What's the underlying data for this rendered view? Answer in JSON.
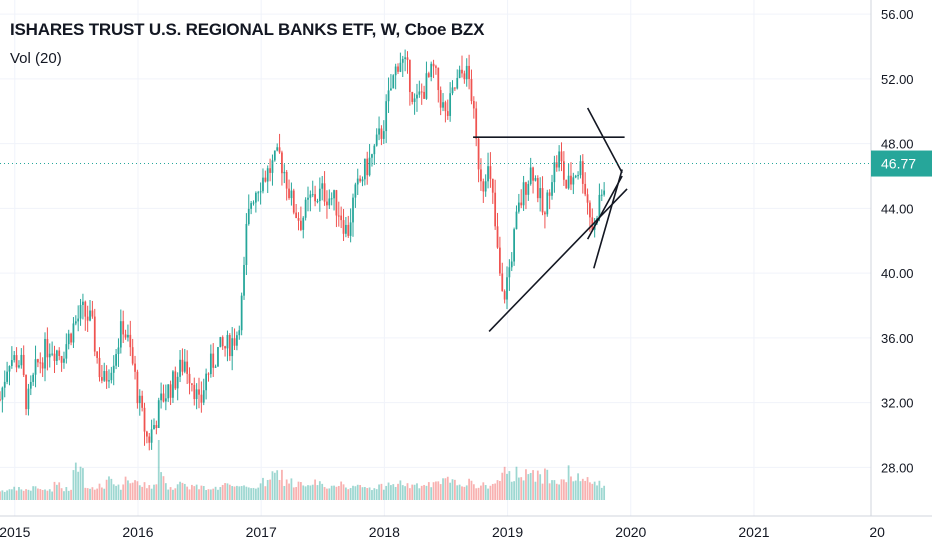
{
  "header": {
    "title": "ISHARES TRUST U.S. REGIONAL BANKS ETF, W, Cboe BZX",
    "volume_label": "Vol (20)"
  },
  "colors": {
    "up": "#26a69a",
    "down": "#ef5350",
    "price_line": "#26a69a",
    "price_badge": "#26a69a",
    "grid": "#f0f3fa",
    "axis_text": "#131722",
    "trendline": "#131722"
  },
  "chart_data": {
    "type": "candlestick",
    "interval": "W",
    "y_ticks": [
      "56.00",
      "52.00",
      "48.00",
      "44.00",
      "40.00",
      "36.00",
      "32.00",
      "28.00"
    ],
    "x_ticks": [
      "2015",
      "2016",
      "2017",
      "2018",
      "2019",
      "2020",
      "2021",
      "20"
    ],
    "ylim": [
      25.0,
      56.5
    ],
    "xlim": [
      2014.88,
      2021.95
    ],
    "last_price": 46.77,
    "last_price_label": "46.77",
    "grid": true,
    "price_path": [
      [
        2014.88,
        32.2
      ],
      [
        2014.95,
        34.8
      ],
      [
        2015.05,
        34.5
      ],
      [
        2015.1,
        31.8
      ],
      [
        2015.18,
        34.3
      ],
      [
        2015.28,
        35.6
      ],
      [
        2015.38,
        35.0
      ],
      [
        2015.48,
        36.8
      ],
      [
        2015.55,
        37.6
      ],
      [
        2015.62,
        37.0
      ],
      [
        2015.68,
        34.2
      ],
      [
        2015.72,
        33.2
      ],
      [
        2015.8,
        34.8
      ],
      [
        2015.88,
        36.8
      ],
      [
        2015.93,
        35.4
      ],
      [
        2015.97,
        33.8
      ],
      [
        2016.02,
        31.5
      ],
      [
        2016.08,
        29.6
      ],
      [
        2016.12,
        30.4
      ],
      [
        2016.2,
        32.3
      ],
      [
        2016.3,
        33.4
      ],
      [
        2016.38,
        34.6
      ],
      [
        2016.45,
        33.2
      ],
      [
        2016.5,
        31.6
      ],
      [
        2016.55,
        33.6
      ],
      [
        2016.65,
        35.2
      ],
      [
        2016.72,
        35.4
      ],
      [
        2016.8,
        36.2
      ],
      [
        2016.85,
        38.6
      ],
      [
        2016.88,
        42.5
      ],
      [
        2016.92,
        44.6
      ],
      [
        2016.98,
        45.6
      ],
      [
        2017.05,
        46.2
      ],
      [
        2017.15,
        47.2
      ],
      [
        2017.2,
        46.0
      ],
      [
        2017.25,
        44.3
      ],
      [
        2017.32,
        43.2
      ],
      [
        2017.4,
        44.5
      ],
      [
        2017.5,
        45.0
      ],
      [
        2017.58,
        44.6
      ],
      [
        2017.65,
        43.6
      ],
      [
        2017.7,
        42.4
      ],
      [
        2017.75,
        44.5
      ],
      [
        2017.82,
        46.0
      ],
      [
        2017.9,
        47.2
      ],
      [
        2017.98,
        48.8
      ],
      [
        2018.05,
        51.3
      ],
      [
        2018.12,
        53.4
      ],
      [
        2018.2,
        52.2
      ],
      [
        2018.25,
        50.3
      ],
      [
        2018.32,
        51.4
      ],
      [
        2018.4,
        52.5
      ],
      [
        2018.45,
        51.0
      ],
      [
        2018.5,
        49.5
      ],
      [
        2018.57,
        51.4
      ],
      [
        2018.65,
        52.6
      ],
      [
        2018.7,
        51.6
      ],
      [
        2018.75,
        47.5
      ],
      [
        2018.8,
        45.5
      ],
      [
        2018.83,
        46.8
      ],
      [
        2018.88,
        44.5
      ],
      [
        2018.92,
        41.0
      ],
      [
        2018.96,
        38.2
      ],
      [
        2019.02,
        40.5
      ],
      [
        2019.08,
        43.6
      ],
      [
        2019.15,
        45.6
      ],
      [
        2019.2,
        46.6
      ],
      [
        2019.25,
        45.0
      ],
      [
        2019.3,
        43.2
      ],
      [
        2019.35,
        46.0
      ],
      [
        2019.42,
        47.2
      ],
      [
        2019.48,
        45.2
      ],
      [
        2019.55,
        46.3
      ],
      [
        2019.6,
        46.6
      ],
      [
        2019.65,
        44.4
      ],
      [
        2019.7,
        42.4
      ],
      [
        2019.73,
        44.2
      ],
      [
        2019.78,
        45.2
      ],
      [
        2019.8,
        44.5
      ]
    ],
    "volume_levels": [
      0.08,
      0.12,
      0.1,
      0.15,
      0.1,
      0.22,
      0.12,
      0.55,
      0.14,
      0.18,
      0.4,
      0.16,
      0.3,
      0.22,
      0.2,
      0.38,
      0.16,
      0.24,
      0.18,
      0.15,
      0.14,
      0.22,
      0.14,
      0.16,
      0.18,
      0.28,
      0.45,
      0.3,
      0.22,
      0.18,
      0.26,
      0.14,
      0.3,
      0.2,
      0.16,
      0.14,
      0.18,
      0.22,
      0.24,
      0.18,
      0.2,
      0.22,
      0.3,
      0.26,
      0.28,
      0.22,
      0.2,
      0.26,
      0.45,
      0.5,
      0.58,
      0.4,
      0.46,
      0.4,
      0.3,
      0.36,
      0.28,
      0.22
    ]
  }
}
